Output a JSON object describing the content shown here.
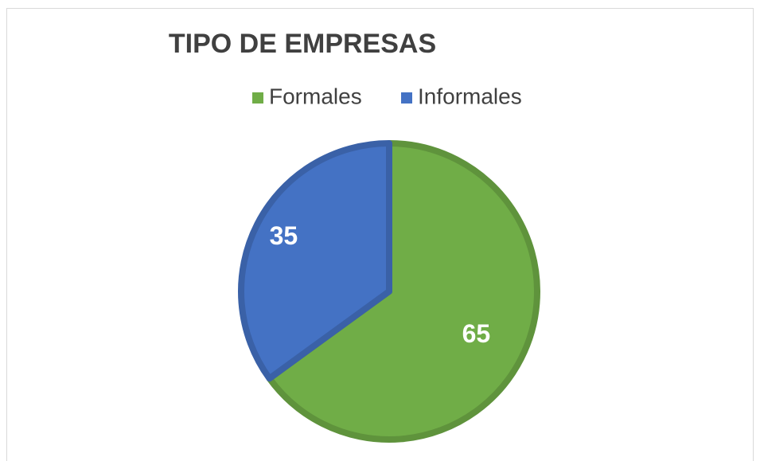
{
  "chart_data": {
    "type": "pie",
    "title": "TIPO DE EMPRESAS",
    "categories": [
      "Formales",
      "Informales"
    ],
    "values": [
      65,
      35
    ],
    "colors": [
      "#70ad47",
      "#4472c4"
    ],
    "legend": "top"
  }
}
